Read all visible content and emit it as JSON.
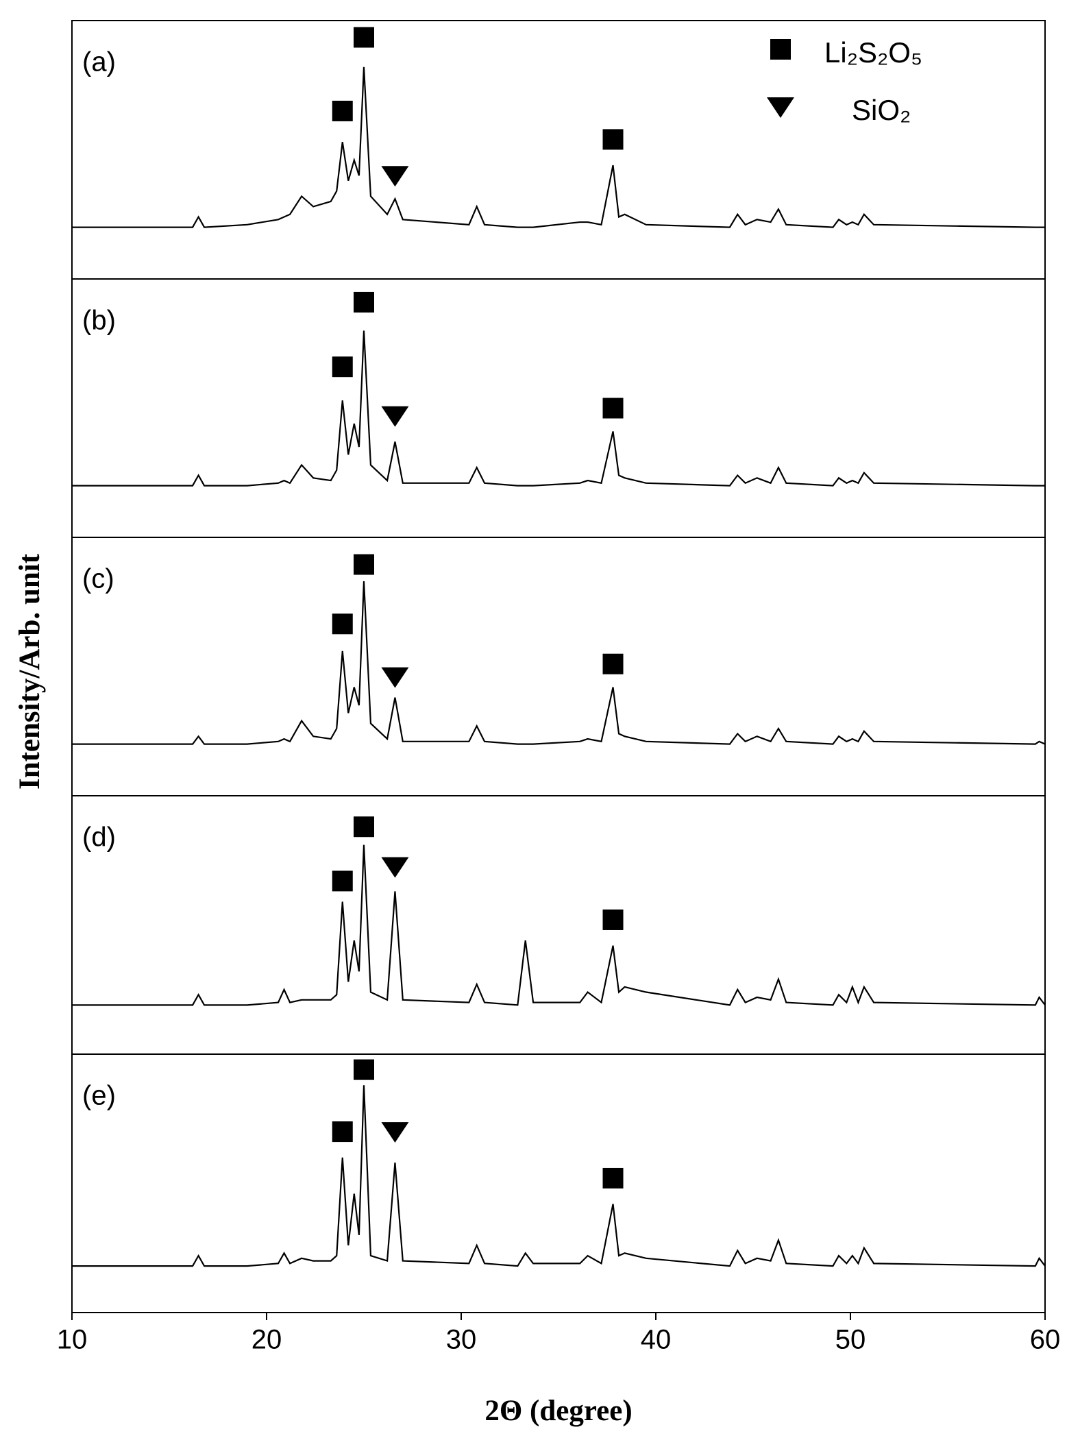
{
  "chart_data": {
    "type": "line",
    "xlabel": "2Θ (degree)",
    "ylabel": "Intensity/Arb. unit",
    "xlim": [
      10,
      60
    ],
    "xticks": [
      10,
      20,
      30,
      40,
      50,
      60
    ],
    "ylim": [
      0,
      100
    ],
    "legend_position": "upper right",
    "legend": [
      {
        "name": "Li₂S₂O₅",
        "symbol": "square"
      },
      {
        "name": "SiO₂",
        "symbol": "triangle"
      }
    ],
    "x": [
      10,
      14,
      16.2,
      16.5,
      16.8,
      19,
      20.6,
      20.9,
      21.2,
      21.8,
      22.4,
      23.3,
      23.6,
      23.9,
      24.2,
      24.5,
      24.75,
      25.0,
      25.35,
      26.2,
      26.6,
      27.0,
      30.4,
      30.8,
      31.2,
      32.9,
      33.3,
      33.7,
      36.1,
      36.5,
      37.2,
      37.8,
      38.1,
      38.4,
      39.5,
      43.8,
      44.2,
      44.6,
      45.2,
      45.9,
      46.3,
      46.7,
      49.1,
      49.4,
      49.8,
      50.1,
      50.4,
      50.7,
      51.2,
      59.5,
      59.7,
      60
    ],
    "series": [
      {
        "name": "(a)",
        "color": "#000000",
        "values": [
          20,
          20,
          20,
          24,
          20,
          21,
          23,
          24,
          25,
          32,
          28,
          30,
          34,
          53,
          38,
          46,
          40,
          82,
          32,
          25,
          31,
          23,
          21,
          28,
          21,
          20,
          20,
          20,
          22,
          22,
          21,
          44,
          24,
          25,
          21,
          20,
          25,
          21,
          23,
          22,
          27,
          21,
          20,
          23,
          21,
          22,
          21,
          25,
          21,
          20,
          20,
          20
        ],
        "markers": [
          {
            "x": 23.9,
            "y": 65,
            "symbol": "square"
          },
          {
            "x": 25.0,
            "y": 93.5,
            "symbol": "square"
          },
          {
            "x": 26.6,
            "y": 40,
            "symbol": "triangle"
          },
          {
            "x": 37.8,
            "y": 54,
            "symbol": "square"
          }
        ]
      },
      {
        "name": "(b)",
        "color": "#000000",
        "values": [
          20,
          20,
          20,
          24,
          20,
          20,
          21,
          22,
          21,
          28,
          23,
          22,
          26,
          53,
          32,
          44,
          35,
          80,
          28,
          22,
          37,
          21,
          21,
          27,
          21,
          20,
          20,
          20,
          21,
          22,
          21,
          41,
          24,
          23,
          21,
          20,
          24,
          21,
          23,
          21,
          27,
          21,
          20,
          23,
          21,
          22,
          21,
          25,
          21,
          20,
          20,
          20
        ],
        "markers": [
          {
            "x": 23.9,
            "y": 66,
            "symbol": "square"
          },
          {
            "x": 25.0,
            "y": 91,
            "symbol": "square"
          },
          {
            "x": 26.6,
            "y": 47,
            "symbol": "triangle"
          },
          {
            "x": 37.8,
            "y": 50,
            "symbol": "square"
          }
        ]
      },
      {
        "name": "(c)",
        "color": "#000000",
        "values": [
          20,
          20,
          20,
          23,
          20,
          20,
          21,
          22,
          21,
          29,
          23,
          22,
          26,
          56,
          32,
          42,
          35,
          83,
          28,
          22,
          38,
          21,
          21,
          27,
          21,
          20,
          20,
          20,
          21,
          22,
          21,
          42,
          24,
          23,
          21,
          20,
          24,
          21,
          23,
          21,
          26,
          21,
          20,
          23,
          21,
          22,
          21,
          25,
          21,
          20,
          21,
          20
        ],
        "markers": [
          {
            "x": 23.9,
            "y": 66.5,
            "symbol": "square"
          },
          {
            "x": 25.0,
            "y": 89.5,
            "symbol": "square"
          },
          {
            "x": 26.6,
            "y": 46,
            "symbol": "triangle"
          },
          {
            "x": 37.8,
            "y": 51,
            "symbol": "square"
          }
        ]
      },
      {
        "name": "(d)",
        "color": "#000000",
        "values": [
          19,
          19,
          19,
          23,
          19,
          19,
          20,
          25,
          20,
          21,
          21,
          21,
          23,
          59,
          28,
          44,
          32,
          81,
          24,
          21,
          63,
          21,
          20,
          27,
          20,
          19,
          44,
          20,
          20,
          24,
          20,
          42,
          24,
          26,
          24,
          19,
          25,
          20,
          22,
          21,
          29,
          20,
          19,
          23,
          20,
          26,
          20,
          26,
          20,
          19,
          22,
          19
        ],
        "markers": [
          {
            "x": 23.9,
            "y": 67,
            "symbol": "square"
          },
          {
            "x": 25.0,
            "y": 88,
            "symbol": "square"
          },
          {
            "x": 26.6,
            "y": 72.5,
            "symbol": "triangle"
          },
          {
            "x": 37.8,
            "y": 52,
            "symbol": "square"
          }
        ]
      },
      {
        "name": "(e)",
        "color": "#000000",
        "values": [
          18,
          18,
          18,
          22,
          18,
          18,
          19,
          23,
          19,
          21,
          20,
          20,
          22,
          60,
          26,
          46,
          30,
          88,
          22,
          20,
          58,
          20,
          19,
          26,
          19,
          18,
          23,
          19,
          19,
          22,
          19,
          42,
          22,
          23,
          21,
          18,
          24,
          19,
          21,
          20,
          28,
          19,
          18,
          22,
          19,
          22,
          19,
          25,
          19,
          18,
          21,
          18
        ],
        "markers": [
          {
            "x": 23.9,
            "y": 70,
            "symbol": "square"
          },
          {
            "x": 25.0,
            "y": 94,
            "symbol": "square"
          },
          {
            "x": 26.6,
            "y": 70,
            "symbol": "triangle"
          },
          {
            "x": 37.8,
            "y": 52,
            "symbol": "square"
          }
        ]
      }
    ]
  }
}
